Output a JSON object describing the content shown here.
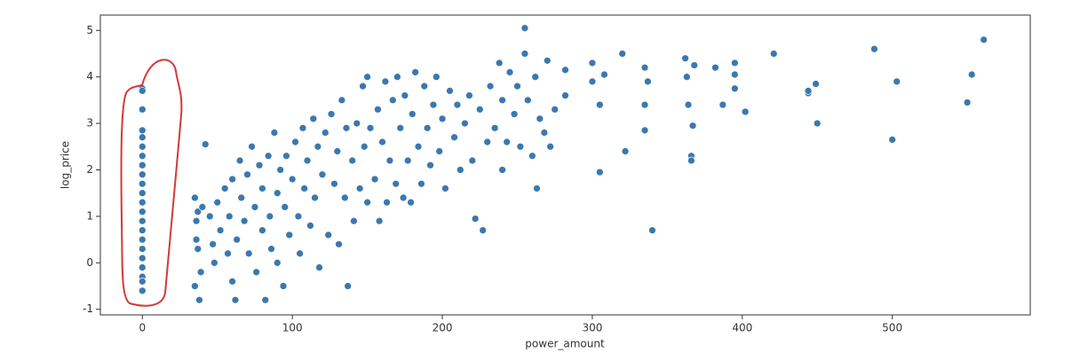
{
  "chart_data": {
    "type": "scatter",
    "x_label": "power_amount",
    "y_label": "log_price",
    "color": "#3a78b0",
    "xlim": [
      -28,
      592
    ],
    "ylim": [
      -1.12,
      5.33
    ],
    "xticks": [
      0,
      100,
      200,
      300,
      400,
      500
    ],
    "yticks": [
      -1,
      0,
      1,
      2,
      3,
      4,
      5
    ],
    "x": [
      0,
      0,
      0,
      0,
      0,
      0,
      0,
      0,
      0,
      0,
      0,
      0,
      0,
      0,
      0,
      0,
      0,
      0,
      0,
      0,
      0,
      0,
      35,
      36,
      37,
      35,
      38,
      37,
      36,
      39,
      40,
      42,
      45,
      47,
      48,
      50,
      52,
      55,
      57,
      58,
      60,
      60,
      62,
      63,
      65,
      66,
      68,
      70,
      71,
      73,
      75,
      76,
      78,
      80,
      80,
      82,
      84,
      85,
      86,
      88,
      90,
      90,
      92,
      94,
      95,
      96,
      98,
      100,
      102,
      104,
      105,
      107,
      108,
      110,
      112,
      114,
      115,
      117,
      118,
      120,
      122,
      124,
      126,
      128,
      130,
      131,
      133,
      135,
      136,
      137,
      140,
      141,
      143,
      145,
      147,
      148,
      150,
      150,
      152,
      155,
      157,
      158,
      160,
      162,
      163,
      165,
      167,
      169,
      170,
      172,
      174,
      175,
      177,
      179,
      180,
      182,
      184,
      186,
      188,
      190,
      192,
      194,
      196,
      198,
      200,
      202,
      205,
      208,
      210,
      212,
      215,
      218,
      220,
      222,
      225,
      227,
      230,
      232,
      235,
      238,
      240,
      240,
      243,
      245,
      248,
      250,
      252,
      255,
      255,
      257,
      260,
      262,
      263,
      265,
      268,
      270,
      272,
      275,
      282,
      282,
      300,
      300,
      305,
      305,
      308,
      320,
      322,
      335,
      335,
      335,
      337,
      340,
      362,
      363,
      364,
      366,
      366,
      367,
      368,
      382,
      387,
      395,
      395,
      395,
      402,
      421,
      444,
      444,
      449,
      450,
      488,
      500,
      503,
      550,
      553,
      561
    ],
    "values": [
      3.75,
      3.7,
      3.3,
      2.85,
      2.7,
      2.5,
      2.3,
      2.1,
      1.9,
      1.7,
      1.5,
      1.3,
      1.1,
      0.9,
      0.7,
      0.5,
      0.3,
      0.1,
      -0.1,
      -0.3,
      -0.4,
      -0.6,
      1.4,
      0.9,
      0.3,
      -0.5,
      -0.8,
      1.1,
      0.5,
      -0.2,
      1.2,
      2.55,
      1.0,
      0.4,
      0.0,
      1.3,
      0.7,
      1.6,
      0.2,
      1.0,
      -0.4,
      1.8,
      -0.8,
      0.5,
      2.2,
      1.4,
      0.9,
      1.9,
      0.2,
      2.5,
      1.2,
      -0.2,
      2.1,
      0.7,
      1.6,
      -0.8,
      2.3,
      1.0,
      0.3,
      2.8,
      1.5,
      0.0,
      2.0,
      -0.5,
      1.2,
      2.3,
      0.6,
      1.8,
      2.6,
      1.0,
      0.2,
      2.9,
      1.6,
      2.2,
      0.8,
      3.1,
      1.4,
      2.5,
      -0.1,
      1.9,
      2.8,
      0.6,
      3.2,
      1.7,
      2.4,
      0.4,
      3.5,
      1.4,
      2.9,
      -0.5,
      2.2,
      0.9,
      3.0,
      1.6,
      3.8,
      2.5,
      1.3,
      4.0,
      2.9,
      1.8,
      3.3,
      0.9,
      2.6,
      3.9,
      1.3,
      2.2,
      3.5,
      1.7,
      4.0,
      2.9,
      1.4,
      3.6,
      2.2,
      1.3,
      3.2,
      4.1,
      2.5,
      1.7,
      3.8,
      2.9,
      2.1,
      3.4,
      4.0,
      2.4,
      3.1,
      1.6,
      3.7,
      2.7,
      3.4,
      2.0,
      3.0,
      3.6,
      2.2,
      0.95,
      3.3,
      0.7,
      2.6,
      3.8,
      2.9,
      4.3,
      3.5,
      2.0,
      2.6,
      4.1,
      3.2,
      3.8,
      2.5,
      5.05,
      4.5,
      3.5,
      2.3,
      4.0,
      1.6,
      3.1,
      2.8,
      4.35,
      2.5,
      3.3,
      4.15,
      3.6,
      4.3,
      3.9,
      3.4,
      1.95,
      4.05,
      4.5,
      2.4,
      4.2,
      3.4,
      2.85,
      3.9,
      0.7,
      4.4,
      4.0,
      3.4,
      2.3,
      2.2,
      2.95,
      4.25,
      4.2,
      3.4,
      4.3,
      4.05,
      3.75,
      3.25,
      4.5,
      3.65,
      3.7,
      3.85,
      3.0,
      4.6,
      2.65,
      3.9,
      3.45,
      4.05,
      4.8
    ]
  }
}
